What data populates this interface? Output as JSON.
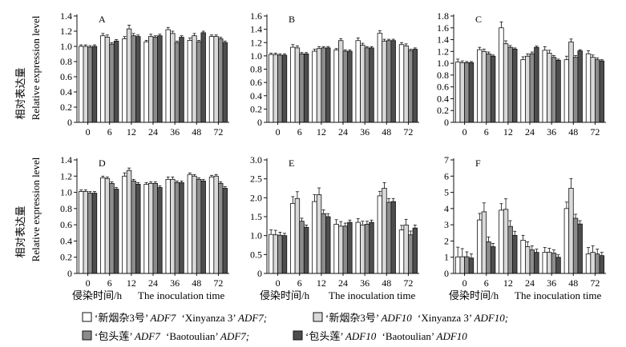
{
  "figure": {
    "ylabel_cn": "相对表达量",
    "ylabel_en": "Relative expression level",
    "xlabel_cn": "侵染时间/h",
    "xlabel_en": "The inoculation time"
  },
  "legend": [
    {
      "text_cn": "‘新烟杂3号’",
      "gene": "ADF7",
      "text_en": "‘Xinyanza 3’",
      "suffix": "ADF7;",
      "color": "#ffffff"
    },
    {
      "text_cn": "‘新烟杂3号’",
      "gene": "ADF10",
      "text_en": "‘Xinyanza 3’",
      "suffix": "ADF10;",
      "color": "#d9d9d9"
    },
    {
      "text_cn": "‘包头莲’",
      "gene": "ADF7",
      "text_en": "‘Baotoulian’",
      "suffix": "ADF7;",
      "color": "#8c8c8c"
    },
    {
      "text_cn": "‘包头莲’",
      "gene": "ADF10",
      "text_en": "‘Baotoulian’",
      "suffix": "ADF10",
      "color": "#4d4d4d"
    }
  ],
  "chart_data": [
    {
      "panel": "A",
      "type": "bar",
      "categories": [
        "0",
        "6",
        "12",
        "24",
        "36",
        "48",
        "72"
      ],
      "yticks": [
        "1.4",
        "1.2",
        "1.0",
        "0.8",
        "0.6",
        "0.4",
        "0.2",
        "0"
      ],
      "ylim": [
        0,
        1.4
      ],
      "series": [
        {
          "name": "Xinyanza 3 ADF7",
          "values": [
            1.0,
            1.14,
            1.1,
            1.06,
            1.22,
            1.08,
            1.13
          ],
          "errors": [
            0.02,
            0.03,
            0.03,
            0.02,
            0.03,
            0.03,
            0.02
          ]
        },
        {
          "name": "Xinyanza 3 ADF10",
          "values": [
            1.0,
            1.12,
            1.23,
            1.13,
            1.17,
            1.14,
            1.13
          ],
          "errors": [
            0.02,
            0.03,
            0.05,
            0.03,
            0.03,
            0.03,
            0.02
          ]
        },
        {
          "name": "Baotoulian ADF7",
          "values": [
            0.99,
            1.03,
            1.14,
            1.12,
            1.05,
            1.06,
            1.1
          ],
          "errors": [
            0.02,
            0.02,
            0.03,
            0.02,
            0.02,
            0.02,
            0.02
          ]
        },
        {
          "name": "Baotoulian ADF10",
          "values": [
            1.0,
            1.07,
            1.13,
            1.14,
            1.12,
            1.18,
            1.05
          ],
          "errors": [
            0.02,
            0.02,
            0.02,
            0.02,
            0.02,
            0.02,
            0.02
          ]
        }
      ]
    },
    {
      "panel": "B",
      "type": "bar",
      "categories": [
        "0",
        "6",
        "12",
        "24",
        "36",
        "48",
        "72"
      ],
      "yticks": [
        "1.6",
        "1.4",
        "1.2",
        "1.0",
        "0.8",
        "0.6",
        "0.4",
        "0.2",
        "0"
      ],
      "ylim": [
        0,
        1.6
      ],
      "series": [
        {
          "name": "Xinyanza 3 ADF7",
          "values": [
            1.02,
            1.13,
            1.07,
            1.09,
            1.23,
            1.34,
            1.17
          ],
          "errors": [
            0.02,
            0.04,
            0.03,
            0.02,
            0.04,
            0.04,
            0.03
          ]
        },
        {
          "name": "Xinyanza 3 ADF10",
          "values": [
            1.02,
            1.12,
            1.11,
            1.23,
            1.16,
            1.22,
            1.15
          ],
          "errors": [
            0.02,
            0.03,
            0.03,
            0.03,
            0.03,
            0.03,
            0.03
          ]
        },
        {
          "name": "Baotoulian ADF7",
          "values": [
            1.01,
            1.03,
            1.12,
            1.07,
            1.12,
            1.23,
            1.08
          ],
          "errors": [
            0.02,
            0.02,
            0.02,
            0.02,
            0.02,
            0.02,
            0.02
          ]
        },
        {
          "name": "Baotoulian ADF10",
          "values": [
            1.01,
            1.03,
            1.12,
            1.07,
            1.12,
            1.23,
            1.1
          ],
          "errors": [
            0.02,
            0.02,
            0.02,
            0.02,
            0.02,
            0.02,
            0.02
          ]
        }
      ]
    },
    {
      "panel": "C",
      "type": "bar",
      "categories": [
        "0",
        "6",
        "12",
        "24",
        "36",
        "48",
        "72"
      ],
      "yticks": [
        "1.8",
        "1.6",
        "1.4",
        "1.2",
        "1.0",
        "0.8",
        "0.6",
        "0.4",
        "0.2",
        "0"
      ],
      "ylim": [
        0,
        1.8
      ],
      "series": [
        {
          "name": "Xinyanza 3 ADF7",
          "values": [
            1.02,
            1.23,
            1.6,
            1.06,
            1.22,
            1.06,
            1.16
          ],
          "errors": [
            0.05,
            0.04,
            0.1,
            0.05,
            0.06,
            0.06,
            0.05
          ]
        },
        {
          "name": "Xinyanza 3 ADF10",
          "values": [
            1.01,
            1.2,
            1.33,
            1.12,
            1.17,
            1.36,
            1.1
          ],
          "errors": [
            0.03,
            0.04,
            0.05,
            0.04,
            0.05,
            0.05,
            0.04
          ]
        },
        {
          "name": "Baotoulian ADF7",
          "values": [
            1.01,
            1.16,
            1.27,
            1.16,
            1.1,
            1.1,
            1.06
          ],
          "errors": [
            0.02,
            0.03,
            0.03,
            0.03,
            0.03,
            0.03,
            0.03
          ]
        },
        {
          "name": "Baotoulian ADF10",
          "values": [
            1.01,
            1.12,
            1.24,
            1.27,
            1.05,
            1.21,
            1.04
          ],
          "errors": [
            0.02,
            0.02,
            0.02,
            0.02,
            0.02,
            0.02,
            0.02
          ]
        }
      ]
    },
    {
      "panel": "D",
      "type": "bar",
      "categories": [
        "0",
        "6",
        "12",
        "24",
        "36",
        "48",
        "72"
      ],
      "yticks": [
        "1.4",
        "1.2",
        "1.0",
        "0.8",
        "0.6",
        "0.4",
        "0.2",
        "0"
      ],
      "ylim": [
        0,
        1.4
      ],
      "series": [
        {
          "name": "Xinyanza 3 ADF7",
          "values": [
            1.01,
            1.18,
            1.2,
            1.1,
            1.16,
            1.22,
            1.19
          ],
          "errors": [
            0.02,
            0.02,
            0.04,
            0.02,
            0.03,
            0.02,
            0.02
          ]
        },
        {
          "name": "Xinyanza 3 ADF10",
          "values": [
            1.01,
            1.17,
            1.27,
            1.11,
            1.16,
            1.2,
            1.2
          ],
          "errors": [
            0.02,
            0.02,
            0.03,
            0.02,
            0.03,
            0.02,
            0.02
          ]
        },
        {
          "name": "Baotoulian ADF7",
          "values": [
            0.99,
            1.11,
            1.14,
            1.11,
            1.12,
            1.16,
            1.11
          ],
          "errors": [
            0.02,
            0.02,
            0.02,
            0.02,
            0.02,
            0.02,
            0.02
          ]
        },
        {
          "name": "Baotoulian ADF10",
          "values": [
            0.99,
            1.04,
            1.1,
            1.06,
            1.12,
            1.14,
            1.05
          ],
          "errors": [
            0.02,
            0.02,
            0.02,
            0.02,
            0.02,
            0.02,
            0.02
          ]
        }
      ]
    },
    {
      "panel": "E",
      "type": "bar",
      "categories": [
        "0",
        "6",
        "12",
        "24",
        "36",
        "48",
        "72"
      ],
      "yticks": [
        "3.0",
        "2.5",
        "2.0",
        "1.5",
        "1.0",
        "0.5",
        "0"
      ],
      "ylim": [
        0,
        3.0
      ],
      "series": [
        {
          "name": "Xinyanza 3 ADF7",
          "values": [
            1.03,
            1.85,
            1.9,
            1.3,
            1.35,
            2.05,
            1.15
          ],
          "errors": [
            0.12,
            0.18,
            0.18,
            0.12,
            0.1,
            0.12,
            0.12
          ]
        },
        {
          "name": "Xinyanza 3 ADF10",
          "values": [
            1.02,
            1.98,
            2.08,
            1.25,
            1.28,
            2.25,
            1.28
          ],
          "errors": [
            0.12,
            0.18,
            0.18,
            0.12,
            0.1,
            0.15,
            0.15
          ]
        },
        {
          "name": "Baotoulian ADF7",
          "values": [
            1.01,
            1.38,
            1.58,
            1.25,
            1.3,
            1.88,
            1.02
          ],
          "errors": [
            0.08,
            0.08,
            0.1,
            0.08,
            0.08,
            0.1,
            0.1
          ]
        },
        {
          "name": "Baotoulian ADF10",
          "values": [
            1.0,
            1.22,
            1.5,
            1.35,
            1.35,
            1.9,
            1.2
          ],
          "errors": [
            0.06,
            0.06,
            0.08,
            0.06,
            0.06,
            0.08,
            0.08
          ]
        }
      ]
    },
    {
      "panel": "F",
      "type": "bar",
      "categories": [
        "0",
        "6",
        "12",
        "24",
        "36",
        "48",
        "72"
      ],
      "yticks": [
        "7",
        "6",
        "5",
        "4",
        "3",
        "2",
        "1",
        "0"
      ],
      "ylim": [
        0,
        7
      ],
      "series": [
        {
          "name": "Xinyanza 3 ADF7",
          "values": [
            1.02,
            3.3,
            3.9,
            2.05,
            1.3,
            4.0,
            1.2
          ],
          "errors": [
            0.6,
            0.4,
            0.4,
            0.3,
            0.3,
            0.4,
            0.4
          ]
        },
        {
          "name": "Xinyanza 3 ADF10",
          "values": [
            1.03,
            3.8,
            3.95,
            1.65,
            1.3,
            5.25,
            1.3
          ],
          "errors": [
            0.5,
            0.55,
            0.65,
            0.3,
            0.25,
            0.6,
            0.4
          ]
        },
        {
          "name": "Baotoulian ADF7",
          "values": [
            1.03,
            1.95,
            2.9,
            1.45,
            1.25,
            3.4,
            1.2
          ],
          "errors": [
            0.3,
            0.3,
            0.35,
            0.25,
            0.2,
            0.25,
            0.3
          ]
        },
        {
          "name": "Baotoulian ADF10",
          "values": [
            0.95,
            1.65,
            2.35,
            1.3,
            1.0,
            3.05,
            1.1
          ],
          "errors": [
            0.25,
            0.2,
            0.25,
            0.2,
            0.15,
            0.2,
            0.2
          ]
        }
      ]
    }
  ]
}
